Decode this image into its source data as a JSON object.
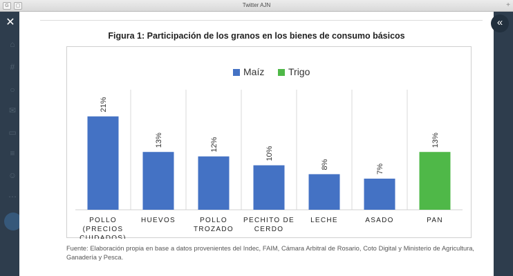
{
  "window": {
    "title": "Twitter AJN"
  },
  "figure": {
    "title": "Figura 1: Participación de los granos en los bienes de consumo básicos",
    "source": "Fuente: Elaboración propia en base a datos provenientes del Indec, FAIM, Cámara Arbitral de Rosario, Coto Digital y Ministerio de Agricultura, Ganadería y Pesca."
  },
  "chart_data": {
    "type": "bar",
    "title": "Figura 1: Participación de los granos en los bienes de consumo básicos",
    "categories": [
      [
        "POLLO",
        "(PRECIOS",
        "CUIDADOS)"
      ],
      [
        "HUEVOS"
      ],
      [
        "POLLO",
        "TROZADO"
      ],
      [
        "PECHITO DE",
        "CERDO"
      ],
      [
        "LECHE"
      ],
      [
        "ASADO"
      ],
      [
        "PAN"
      ]
    ],
    "values": [
      21,
      13,
      12,
      10,
      8,
      7,
      13
    ],
    "labels": [
      "21%",
      "13%",
      "12%",
      "10%",
      "8%",
      "7%",
      "13%"
    ],
    "series_of_bar": [
      "Maíz",
      "Maíz",
      "Maíz",
      "Maíz",
      "Maíz",
      "Maíz",
      "Trigo"
    ],
    "legend": [
      {
        "name": "Maíz",
        "color": "#4472c4"
      },
      {
        "name": "Trigo",
        "color": "#4fb848"
      }
    ],
    "legend_position": "top",
    "ylim": [
      0,
      27
    ],
    "grid": "vertical-separators"
  },
  "icons": {
    "close": "close-icon",
    "collapse": "double-chevron-left-icon"
  }
}
